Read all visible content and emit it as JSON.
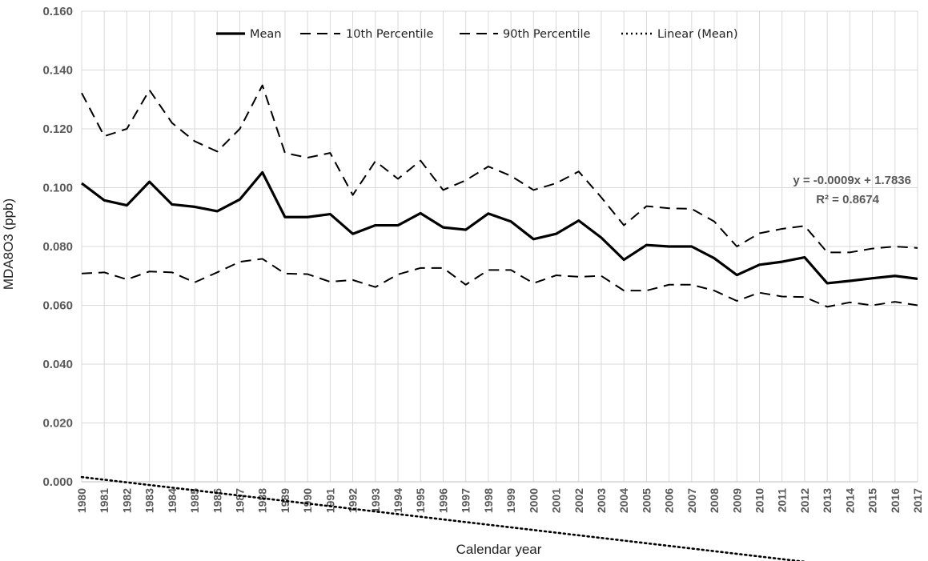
{
  "chart_data": {
    "type": "line",
    "xlabel": "Calendar year",
    "ylabel": "MDA8O3 (ppb)",
    "ylim": [
      0,
      0.16
    ],
    "y_ticks": [
      "0.000",
      "0.020",
      "0.040",
      "0.060",
      "0.080",
      "0.100",
      "0.120",
      "0.140",
      "0.160"
    ],
    "x": [
      "1980",
      "1981",
      "1982",
      "1983",
      "1984",
      "1985",
      "1986",
      "1987",
      "1988",
      "1989",
      "1990",
      "1991",
      "1992",
      "1993",
      "1994",
      "1995",
      "1996",
      "1997",
      "1998",
      "1999",
      "2000",
      "2001",
      "2002",
      "2003",
      "2004",
      "2005",
      "2006",
      "2007",
      "2008",
      "2009",
      "2010",
      "2011",
      "2012",
      "2013",
      "2014",
      "2015",
      "2016",
      "2017"
    ],
    "grid": true,
    "legend_position": "top",
    "series": [
      {
        "name": "Mean",
        "style": "solid",
        "values": [
          0.1015,
          0.0957,
          0.094,
          0.102,
          0.0943,
          0.0935,
          0.092,
          0.096,
          0.1052,
          0.09,
          0.09,
          0.091,
          0.0843,
          0.0872,
          0.0872,
          0.0913,
          0.0865,
          0.0857,
          0.0912,
          0.0885,
          0.0825,
          0.0843,
          0.0888,
          0.083,
          0.0755,
          0.0805,
          0.08,
          0.08,
          0.076,
          0.0703,
          0.0738,
          0.0748,
          0.0763,
          0.0675,
          0.0683,
          0.0692,
          0.07,
          0.069
        ]
      },
      {
        "name": "10th Percentile",
        "style": "dashed",
        "values": [
          0.0708,
          0.0712,
          0.0688,
          0.0715,
          0.0712,
          0.0678,
          0.0712,
          0.0748,
          0.0758,
          0.0708,
          0.0706,
          0.068,
          0.0686,
          0.0662,
          0.0705,
          0.0727,
          0.0727,
          0.067,
          0.072,
          0.072,
          0.0675,
          0.0702,
          0.0697,
          0.07,
          0.065,
          0.065,
          0.067,
          0.067,
          0.065,
          0.0615,
          0.0643,
          0.063,
          0.0628,
          0.0595,
          0.061,
          0.06,
          0.0612,
          0.06
        ]
      },
      {
        "name": "90th Percentile",
        "style": "dashed",
        "values": [
          0.1322,
          0.1175,
          0.12,
          0.1332,
          0.122,
          0.1158,
          0.1123,
          0.12,
          0.1348,
          0.1118,
          0.1102,
          0.1118,
          0.0975,
          0.109,
          0.103,
          0.1092,
          0.0992,
          0.1025,
          0.1072,
          0.104,
          0.0992,
          0.1015,
          0.1055,
          0.0967,
          0.0872,
          0.0937,
          0.093,
          0.0928,
          0.0885,
          0.08,
          0.0845,
          0.086,
          0.087,
          0.078,
          0.078,
          0.0793,
          0.08,
          0.0795
        ]
      },
      {
        "name": "Linear (Mean)",
        "style": "dotted",
        "slope": -0.0009,
        "intercept": 1.7836
      }
    ],
    "annotations": {
      "equation": "y = -0.0009x + 1.7836",
      "r2": "R² = 0.8674"
    }
  }
}
